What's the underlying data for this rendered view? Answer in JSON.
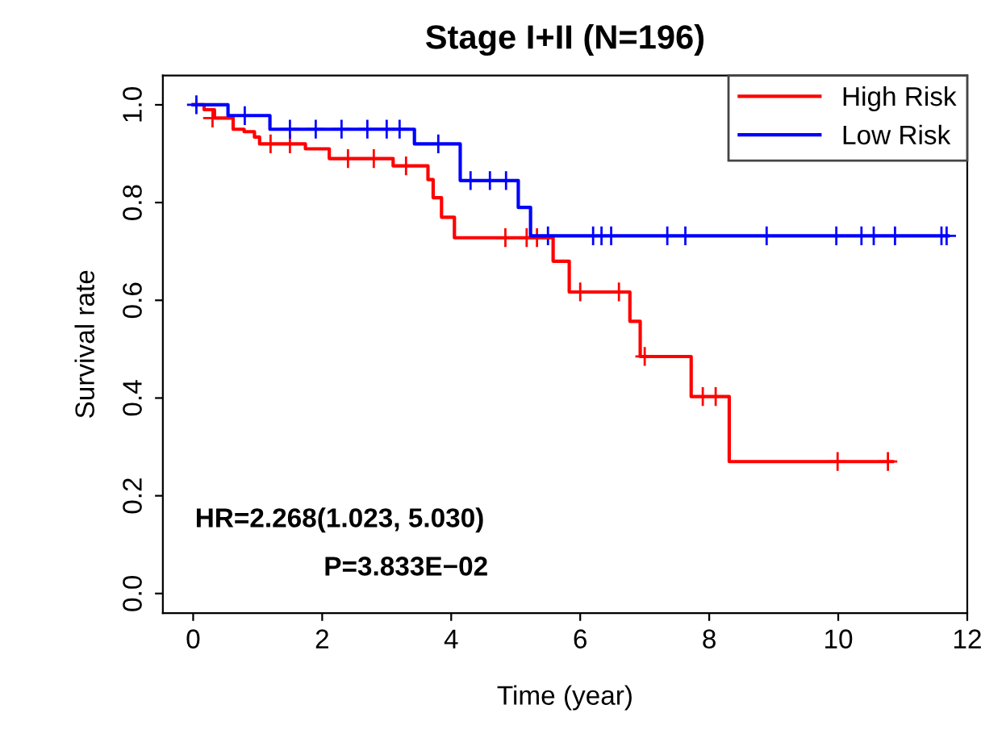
{
  "chart_data": {
    "type": "step",
    "title": "Stage I+II (N=196)",
    "xlabel": "Time (year)",
    "ylabel": "Survival rate",
    "xlim": [
      -0.47,
      12
    ],
    "xticks": [
      0,
      2,
      4,
      6,
      8,
      10,
      12
    ],
    "ylim": [
      -0.04,
      1.06
    ],
    "yticks": [
      {
        "value": 0,
        "label": "0.0"
      },
      0.2,
      0.4,
      0.6,
      0.8,
      {
        "value": 1,
        "label": "1.0"
      }
    ],
    "grid": false,
    "legend": "top right",
    "line_style": "solid",
    "annotations": [
      "HR=2.268(1.023, 5.030)",
      "P=3.833E−02"
    ],
    "series": [
      {
        "name": "High Risk",
        "color": "#ff0000",
        "x": [
          0,
          0.17,
          0.33,
          0.62,
          0.79,
          0.95,
          1.03,
          1.74,
          2.11,
          3.1,
          3.64,
          3.72,
          3.85,
          4.05,
          5.58,
          5.83,
          6.77,
          6.93,
          7.72,
          8.31,
          10.84
        ],
        "values": [
          1.0,
          0.99,
          0.973,
          0.95,
          0.945,
          0.934,
          0.92,
          0.91,
          0.89,
          0.875,
          0.847,
          0.81,
          0.77,
          0.728,
          0.68,
          0.617,
          0.557,
          0.485,
          0.403,
          0.27,
          0.27
        ]
      },
      {
        "name": "Low Risk",
        "color": "#0000ff",
        "x": [
          0,
          0.54,
          1.19,
          3.43,
          4.14,
          5.04,
          5.23,
          11.7
        ],
        "values": [
          1.0,
          0.978,
          0.95,
          0.92,
          0.845,
          0.79,
          0.732,
          0.732
        ]
      },
      {
        "type": "scatter",
        "marker": "cross",
        "color": "#ff0000",
        "x": [
          0.3,
          1.2,
          1.5,
          2.4,
          2.8,
          3.3,
          4.84,
          5.17,
          5.33,
          6.0,
          6.6,
          7.0,
          7.9,
          8.1,
          9.99,
          10.77
        ],
        "values": [
          0.973,
          0.92,
          0.92,
          0.89,
          0.89,
          0.875,
          0.728,
          0.728,
          0.728,
          0.617,
          0.617,
          0.485,
          0.403,
          0.403,
          0.27,
          0.27
        ]
      },
      {
        "type": "scatter",
        "marker": "cross",
        "color": "#0000ff",
        "x": [
          0.05,
          0.8,
          1.5,
          1.9,
          2.3,
          2.7,
          3.0,
          3.2,
          3.8,
          4.3,
          4.6,
          4.85,
          5.5,
          6.2,
          6.33,
          6.48,
          7.35,
          7.63,
          8.89,
          9.97,
          10.36,
          10.55,
          10.88,
          11.6,
          11.68
        ],
        "values": [
          1.0,
          0.978,
          0.95,
          0.95,
          0.95,
          0.95,
          0.95,
          0.95,
          0.92,
          0.845,
          0.845,
          0.845,
          0.732,
          0.732,
          0.732,
          0.732,
          0.732,
          0.732,
          0.732,
          0.732,
          0.732,
          0.732,
          0.732,
          0.732,
          0.732
        ]
      }
    ]
  }
}
